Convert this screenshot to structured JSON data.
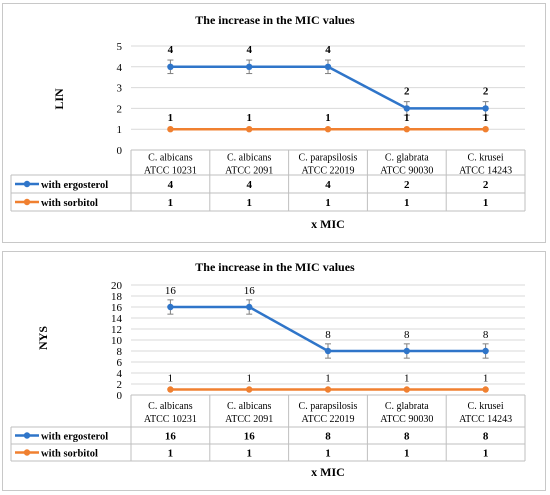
{
  "colors": {
    "ergosterol": "#2f75c9",
    "sorbitol": "#f08030",
    "grid": "#d9d9d9",
    "errorbar": "#7f7f7f"
  },
  "chart_data": [
    {
      "type": "line",
      "title": "The increase in the MIC values",
      "ylabel": "LIN",
      "xlabel": "x MIC",
      "ylim": [
        0,
        5
      ],
      "yticks": [
        0,
        1,
        2,
        3,
        4,
        5
      ],
      "categories": [
        [
          "C. albicans",
          "ATCC 10231"
        ],
        [
          "C. albicans",
          "ATCC 2091"
        ],
        [
          "C. parapsilosis",
          "ATCC 22019"
        ],
        [
          "C. glabrata",
          "ATCC 90030"
        ],
        [
          "C. krusei",
          "ATCC 14243"
        ]
      ],
      "series": [
        {
          "name": "with ergosterol",
          "values": [
            4,
            4,
            4,
            2,
            2
          ],
          "color": "#2f75c9",
          "error_bars": true
        },
        {
          "name": "with sorbitol",
          "values": [
            1,
            1,
            1,
            1,
            1
          ],
          "color": "#f08030",
          "error_bars": false
        }
      ],
      "grid": true,
      "legend": "data table"
    },
    {
      "type": "line",
      "title": "The increase in the MIC values",
      "ylabel": "NYS",
      "xlabel": "x MIC",
      "ylim": [
        0,
        20
      ],
      "yticks": [
        0,
        2,
        4,
        6,
        8,
        10,
        12,
        14,
        16,
        18,
        20
      ],
      "categories": [
        [
          "C. albicans",
          "ATCC 10231"
        ],
        [
          "C. albicans",
          "ATCC 2091"
        ],
        [
          "C. parapsilosis",
          "ATCC 22019"
        ],
        [
          "C. glabrata",
          "ATCC 90030"
        ],
        [
          "C. krusei",
          "ATCC 14243"
        ]
      ],
      "series": [
        {
          "name": "with ergosterol",
          "values": [
            16,
            16,
            8,
            8,
            8
          ],
          "color": "#2f75c9",
          "error_bars": true
        },
        {
          "name": "with sorbitol",
          "values": [
            1,
            1,
            1,
            1,
            1
          ],
          "color": "#f08030",
          "error_bars": false
        }
      ],
      "grid": true,
      "legend": "data table"
    }
  ]
}
